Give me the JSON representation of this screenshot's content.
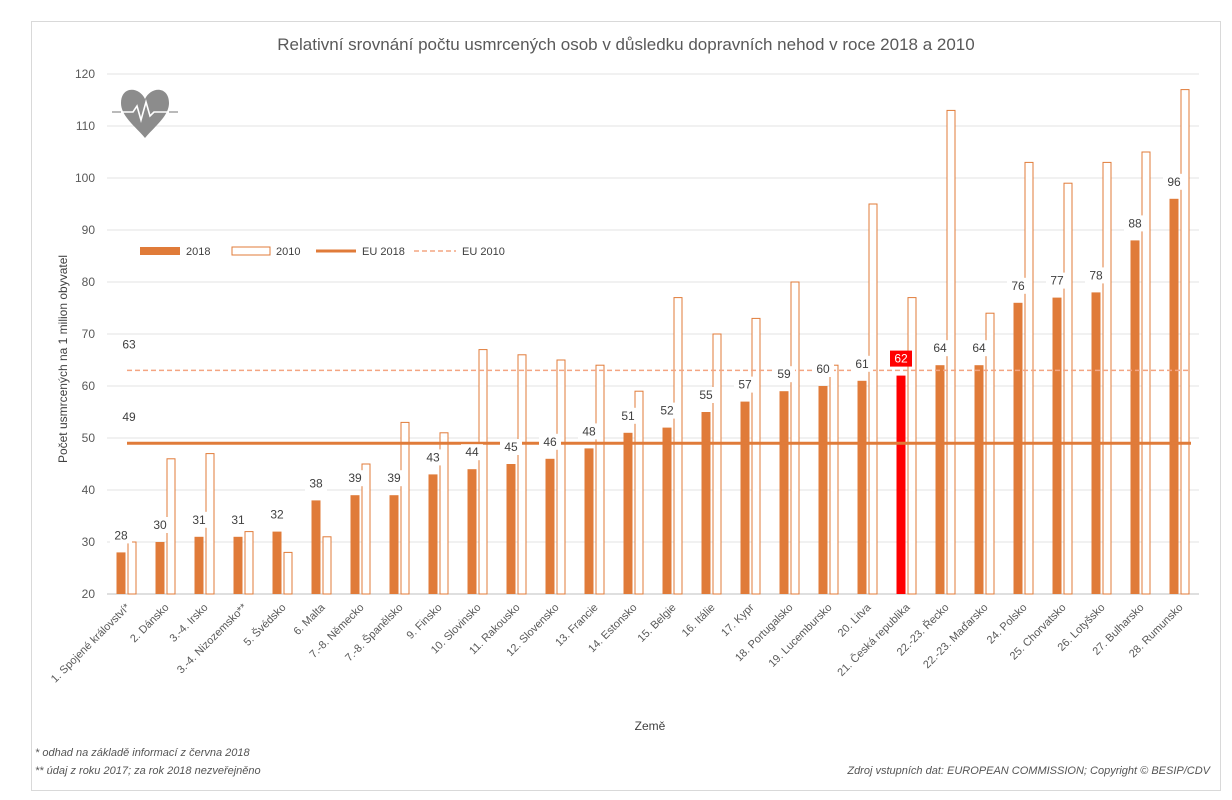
{
  "chart_data": {
    "type": "bar",
    "title": "Relativní srovnání počtu usmrcených osob v důsledku dopravních nehod v roce 2018 a 2010",
    "xlabel": "Země",
    "ylabel": "Počet usmrcených na 1 milion obyvatel",
    "ylim": [
      20,
      120
    ],
    "yticks": [
      20,
      30,
      40,
      50,
      60,
      70,
      80,
      90,
      100,
      110,
      120
    ],
    "grid": true,
    "legend_position": "top-left",
    "categories": [
      "1. Spojené království*",
      "2. Dánsko",
      "3.-4. Irsko",
      "3.-4. Nizozemsko**",
      "5. Švédsko",
      "6. Malta",
      "7.-8. Německo",
      "7.-8. Španělsko",
      "9. Finsko",
      "10. Slovinsko",
      "11. Rakousko",
      "12. Slovensko",
      "13. Francie",
      "14. Estonsko",
      "15. Belgie",
      "16. Itálie",
      "17. Kypr",
      "18. Portugalsko",
      "19. Lucembursko",
      "20. Litva",
      "21. Česká republika",
      "22.-23. Řecko",
      "22.-23. Maďarsko",
      "24. Polsko",
      "25. Chorvatsko",
      "26. Lotyšsko",
      "27. Bulharsko",
      "28. Rumunsko"
    ],
    "series": [
      {
        "name": "2018",
        "values": [
          28,
          30,
          31,
          31,
          32,
          38,
          39,
          39,
          43,
          44,
          45,
          46,
          48,
          51,
          52,
          55,
          57,
          59,
          60,
          61,
          62,
          64,
          64,
          76,
          77,
          78,
          88,
          96
        ]
      },
      {
        "name": "2010",
        "values": [
          30,
          46,
          47,
          32,
          28,
          31,
          45,
          53,
          51,
          67,
          66,
          65,
          64,
          59,
          77,
          70,
          73,
          80,
          64,
          95,
          77,
          113,
          74,
          103,
          99,
          103,
          105,
          117
        ]
      }
    ],
    "reference_lines": [
      {
        "name": "EU 2018",
        "value": 49,
        "label": "49",
        "style": "solid"
      },
      {
        "name": "EU 2010",
        "value": 63,
        "label": "63",
        "style": "dashed"
      }
    ],
    "highlight_category": "21. Česká republika",
    "colors": {
      "bar2018": "#e07b39",
      "bar2010_outline": "#e07b39",
      "highlight": "#ff0000",
      "eu2010": "#f4a582",
      "grid": "#e3e3e3",
      "axis_text": "#595959"
    }
  },
  "footnotes": {
    "note1": "* odhad na základě informací z června 2018",
    "note2": "** údaj z roku 2017; za rok 2018 nezveřejněno",
    "source": "Zdroj vstupních dat: EUROPEAN COMMISSION; Copyright © BESIP/CDV"
  },
  "logo": {
    "icon": "heart-ecg-icon"
  }
}
